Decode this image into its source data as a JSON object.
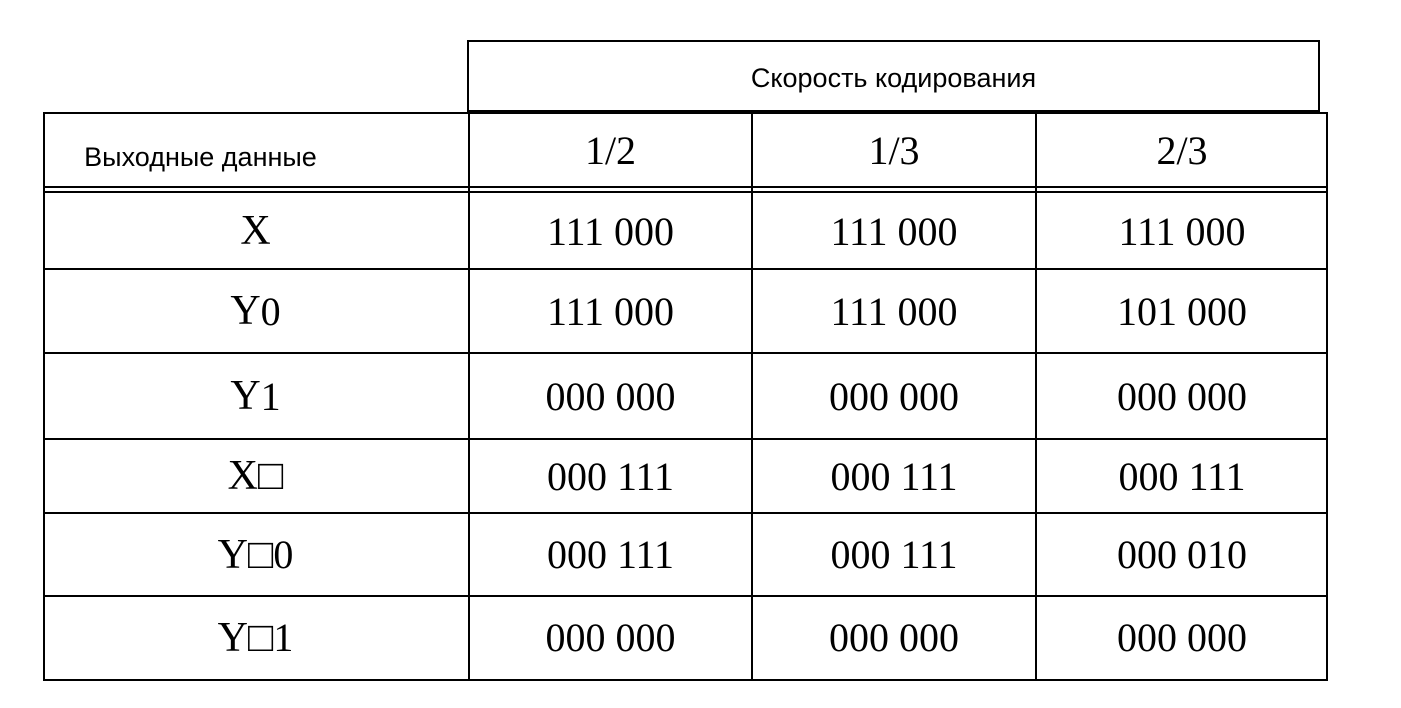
{
  "table": {
    "group_header": "Скорость кодирования",
    "row_header": "Выходные данные",
    "columns": [
      "1/2",
      "1/3",
      "2/3"
    ],
    "rows": [
      {
        "label": "X",
        "sub": "",
        "values": [
          "111 000",
          "111 000",
          "111 000"
        ]
      },
      {
        "label": "Y",
        "sub": "0",
        "values": [
          "111 000",
          "111 000",
          "101 000"
        ]
      },
      {
        "label": "Y",
        "sub": "1",
        "values": [
          "000 000",
          "000 000",
          "000 000"
        ]
      },
      {
        "label": "X□",
        "sub": "",
        "values": [
          "000 111",
          "000 111",
          "000 111"
        ]
      },
      {
        "label": "Y□",
        "sub": "0",
        "values": [
          "000 111",
          "000 111",
          "000 010"
        ]
      },
      {
        "label": "Y□",
        "sub": "1",
        "values": [
          "000 000",
          "000 000",
          "000 000"
        ]
      }
    ]
  }
}
